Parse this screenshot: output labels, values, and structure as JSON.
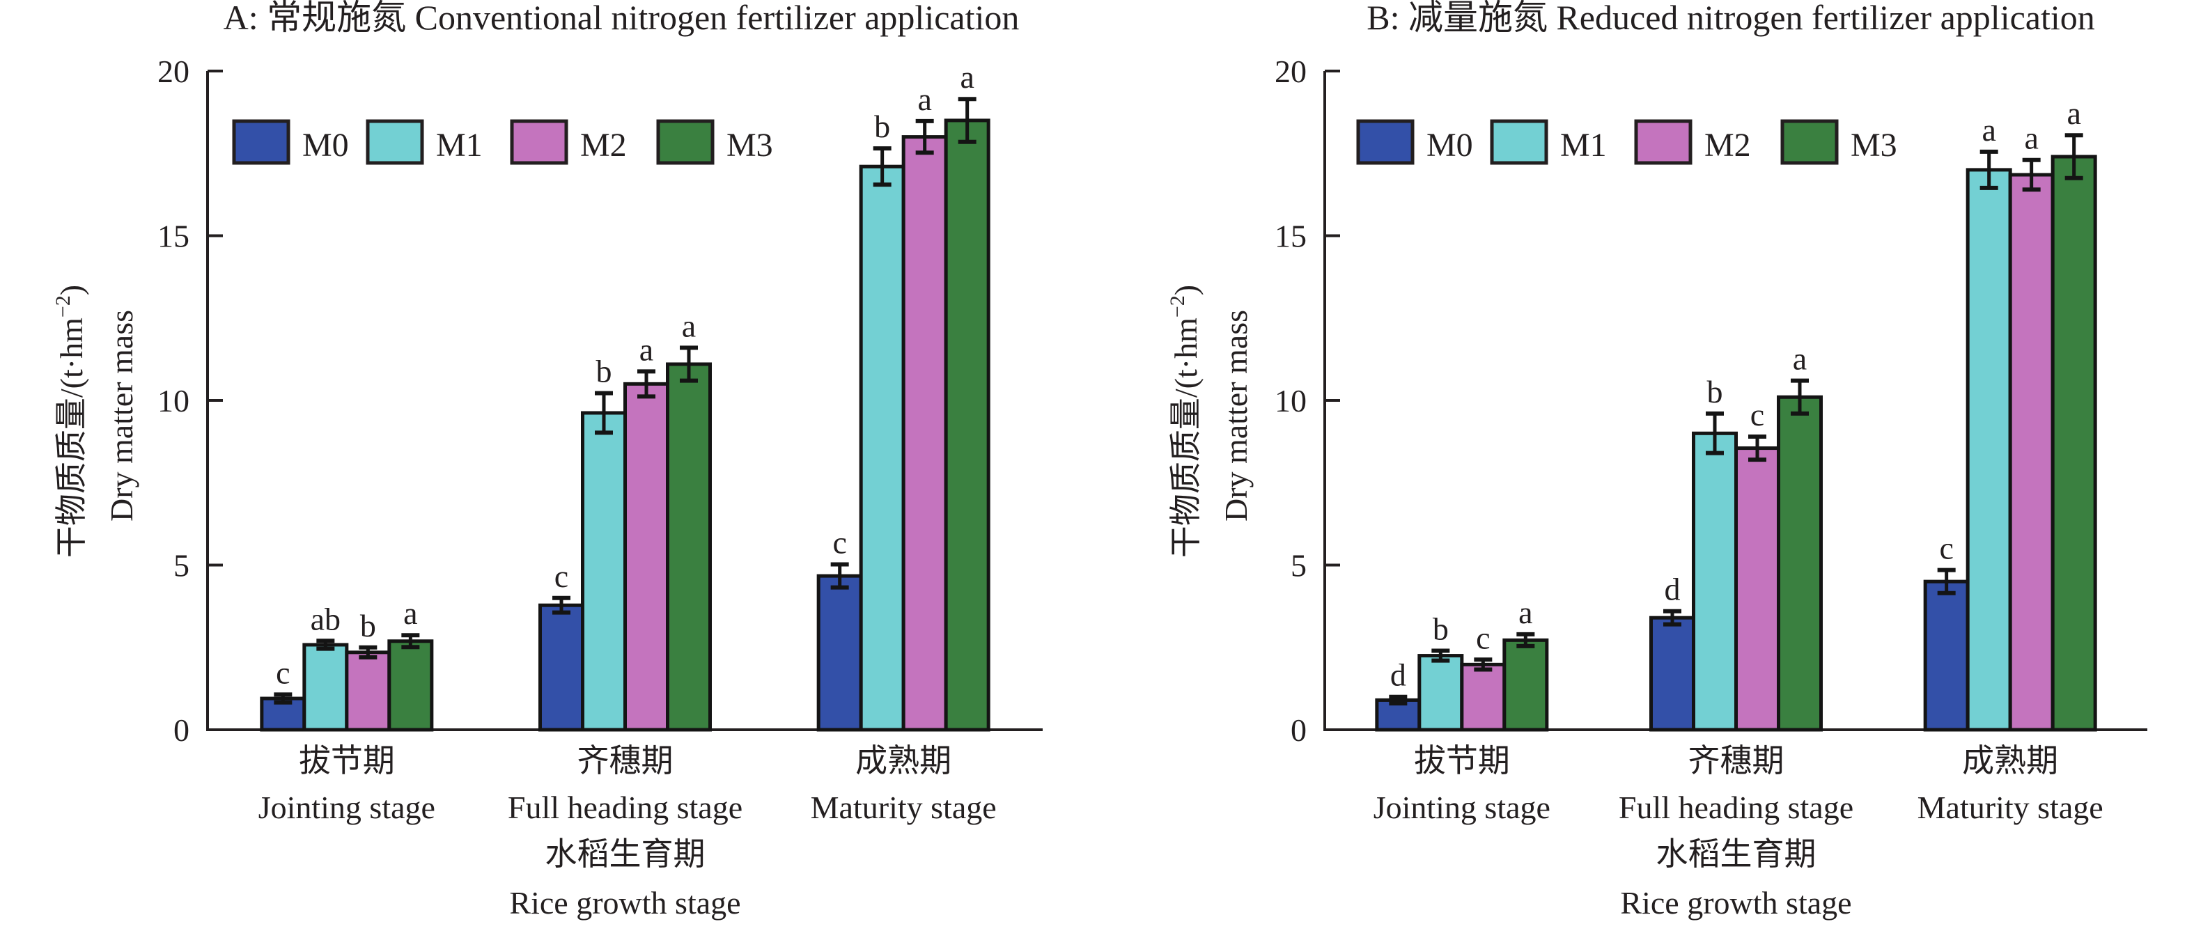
{
  "chart_data": [
    {
      "type": "bar",
      "panel": "A",
      "title": "A: 常规施氮  Conventional nitrogen fertilizer application",
      "ylabel_cn": "干物质质量/(t·hm",
      "ylabel_unit_exp": "−2",
      "ylabel_close": ")",
      "ylabel_en": "Dry matter mass",
      "xlabel_cn": "水稻生育期",
      "xlabel_en": "Rice growth stage",
      "categories": [
        {
          "cn": "拔节期",
          "en": "Jointing stage"
        },
        {
          "cn": "齐穗期",
          "en": "Full heading stage"
        },
        {
          "cn": "成熟期",
          "en": "Maturity stage"
        }
      ],
      "ylim": [
        0,
        20
      ],
      "yticks": [
        0,
        5,
        10,
        15,
        20
      ],
      "legend_position": "top-left",
      "series": [
        {
          "name": "M0",
          "color": "#3350A8",
          "values": [
            0.95,
            3.78,
            4.67
          ],
          "errors": [
            0.12,
            0.22,
            0.35
          ],
          "letters": [
            "c",
            "c",
            "c"
          ]
        },
        {
          "name": "M1",
          "color": "#73D0D3",
          "values": [
            2.58,
            9.62,
            17.1
          ],
          "errors": [
            0.12,
            0.6,
            0.55
          ],
          "letters": [
            "ab",
            "b",
            "b"
          ]
        },
        {
          "name": "M2",
          "color": "#C474BE",
          "values": [
            2.35,
            10.5,
            18.0
          ],
          "errors": [
            0.15,
            0.38,
            0.48
          ],
          "letters": [
            "b",
            "a",
            "a"
          ]
        },
        {
          "name": "M3",
          "color": "#3A8040",
          "values": [
            2.69,
            11.1,
            18.5
          ],
          "errors": [
            0.18,
            0.5,
            0.65
          ],
          "letters": [
            "a",
            "a",
            "a"
          ]
        }
      ]
    },
    {
      "type": "bar",
      "panel": "B",
      "title": "B: 减量施氮  Reduced nitrogen fertilizer application",
      "ylabel_cn": "干物质质量/(t·hm",
      "ylabel_unit_exp": "−2",
      "ylabel_close": ")",
      "ylabel_en": "Dry matter mass",
      "xlabel_cn": "水稻生育期",
      "xlabel_en": "Rice growth stage",
      "categories": [
        {
          "cn": "拔节期",
          "en": "Jointing stage"
        },
        {
          "cn": "齐穗期",
          "en": "Full heading stage"
        },
        {
          "cn": "成熟期",
          "en": "Maturity stage"
        }
      ],
      "ylim": [
        0,
        20
      ],
      "yticks": [
        0,
        5,
        10,
        15,
        20
      ],
      "legend_position": "top-left",
      "series": [
        {
          "name": "M0",
          "color": "#3350A8",
          "values": [
            0.9,
            3.4,
            4.5
          ],
          "errors": [
            0.1,
            0.2,
            0.35
          ],
          "letters": [
            "d",
            "d",
            "c"
          ]
        },
        {
          "name": "M1",
          "color": "#73D0D3",
          "values": [
            2.25,
            9.0,
            17.0
          ],
          "errors": [
            0.15,
            0.6,
            0.55
          ],
          "letters": [
            "b",
            "b",
            "a"
          ]
        },
        {
          "name": "M2",
          "color": "#C474BE",
          "values": [
            1.98,
            8.55,
            16.85
          ],
          "errors": [
            0.15,
            0.35,
            0.45
          ],
          "letters": [
            "c",
            "c",
            "a"
          ]
        },
        {
          "name": "M3",
          "color": "#3A8040",
          "values": [
            2.72,
            10.1,
            17.4
          ],
          "errors": [
            0.18,
            0.5,
            0.65
          ],
          "letters": [
            "a",
            "a",
            "a"
          ]
        }
      ]
    }
  ]
}
